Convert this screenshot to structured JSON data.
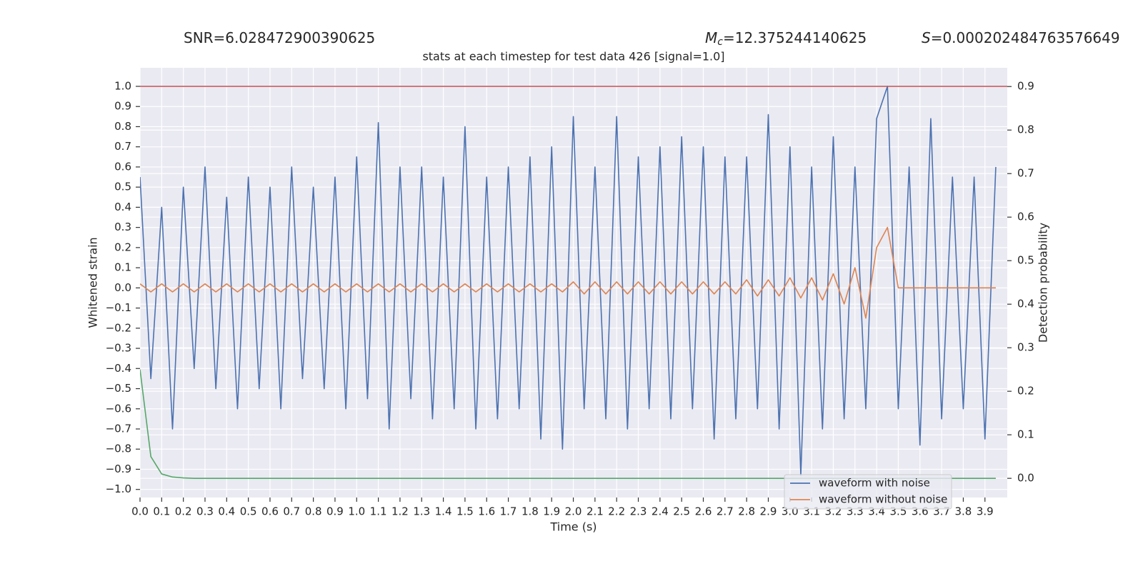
{
  "chart_data": {
    "type": "line",
    "title": "stats at each timestep for test data 426 [signal=1.0]",
    "annotations": [
      {
        "text": "SNR=6.028472900390625"
      },
      {
        "symbol": "M",
        "sub": "c",
        "text": "=12.375244140625"
      },
      {
        "symbol": "S",
        "text": "=0.000202484763576649"
      }
    ],
    "x_label": "Time (s)",
    "y_label": "Whitened strain",
    "y2_label": "Detection probability",
    "x": [
      0,
      0.05,
      0.1,
      0.15,
      0.2,
      0.25,
      0.3,
      0.35,
      0.4,
      0.45,
      0.5,
      0.55,
      0.6,
      0.65,
      0.7,
      0.75,
      0.8,
      0.85,
      0.9,
      0.95,
      1,
      1.05,
      1.1,
      1.15,
      1.2,
      1.25,
      1.3,
      1.35,
      1.4,
      1.45,
      1.5,
      1.55,
      1.6,
      1.65,
      1.7,
      1.75,
      1.8,
      1.85,
      1.9,
      1.95,
      2,
      2.05,
      2.1,
      2.15,
      2.2,
      2.25,
      2.3,
      2.35,
      2.4,
      2.45,
      2.5,
      2.55,
      2.6,
      2.65,
      2.7,
      2.75,
      2.8,
      2.85,
      2.9,
      2.95,
      3,
      3.05,
      3.1,
      3.15,
      3.2,
      3.25,
      3.3,
      3.35,
      3.4,
      3.45,
      3.5,
      3.55,
      3.6,
      3.65,
      3.7,
      3.75,
      3.8,
      3.85,
      3.9,
      3.95
    ],
    "series": [
      {
        "name": "waveform with noise",
        "color": "#4c72b0",
        "values": [
          0.55,
          -0.45,
          0.4,
          -0.7,
          0.5,
          -0.4,
          0.6,
          -0.5,
          0.45,
          -0.6,
          0.55,
          -0.5,
          0.5,
          -0.6,
          0.6,
          -0.45,
          0.5,
          -0.5,
          0.55,
          -0.6,
          0.65,
          -0.55,
          0.82,
          -0.7,
          0.6,
          -0.55,
          0.6,
          -0.65,
          0.55,
          -0.6,
          0.8,
          -0.7,
          0.55,
          -0.65,
          0.6,
          -0.6,
          0.65,
          -0.75,
          0.7,
          -0.8,
          0.85,
          -0.6,
          0.6,
          -0.65,
          0.85,
          -0.7,
          0.65,
          -0.6,
          0.7,
          -0.65,
          0.75,
          -0.6,
          0.7,
          -0.75,
          0.65,
          -0.65,
          0.65,
          -0.6,
          0.86,
          -0.7,
          0.7,
          -0.93,
          0.6,
          -0.7,
          0.75,
          -0.65,
          0.6,
          -0.6,
          0.84,
          1.0,
          -0.6,
          0.6,
          -0.78,
          0.84,
          -0.65,
          0.55,
          -0.6,
          0.55,
          -0.75,
          0.6
        ]
      },
      {
        "name": "waveform without noise",
        "color": "#dd8452",
        "values": [
          0.02,
          -0.02,
          0.02,
          -0.02,
          0.02,
          -0.02,
          0.02,
          -0.02,
          0.02,
          -0.02,
          0.02,
          -0.02,
          0.02,
          -0.02,
          0.02,
          -0.02,
          0.02,
          -0.02,
          0.02,
          -0.02,
          0.02,
          -0.02,
          0.02,
          -0.02,
          0.02,
          -0.02,
          0.02,
          -0.02,
          0.02,
          -0.02,
          0.02,
          -0.02,
          0.02,
          -0.02,
          0.02,
          -0.02,
          0.02,
          -0.02,
          0.02,
          -0.02,
          0.03,
          -0.03,
          0.03,
          -0.03,
          0.03,
          -0.03,
          0.03,
          -0.03,
          0.03,
          -0.03,
          0.03,
          -0.03,
          0.03,
          -0.03,
          0.03,
          -0.03,
          0.04,
          -0.04,
          0.04,
          -0.04,
          0.05,
          -0.05,
          0.05,
          -0.06,
          0.07,
          -0.08,
          0.1,
          -0.15,
          0.2,
          0.3,
          0,
          0,
          0,
          0,
          0,
          0,
          0,
          0,
          0,
          0
        ]
      },
      {
        "color": "#55a868",
        "axis": "y2",
        "values": [
          0.25,
          0.05,
          0.01,
          0.003,
          0.001,
          0,
          0,
          0,
          0,
          0,
          0,
          0,
          0,
          0,
          0,
          0,
          0,
          0,
          0,
          0,
          0,
          0,
          0,
          0,
          0,
          0,
          0,
          0,
          0,
          0,
          0,
          0,
          0,
          0,
          0,
          0,
          0,
          0,
          0,
          0,
          0,
          0,
          0,
          0,
          0,
          0,
          0,
          0,
          0,
          0,
          0,
          0,
          0,
          0,
          0,
          0,
          0,
          0,
          0,
          0,
          0,
          0,
          0,
          0,
          0,
          0,
          0,
          0,
          0,
          0,
          0,
          0,
          0,
          0,
          0,
          0,
          0,
          0,
          0,
          0
        ]
      }
    ],
    "hlines": [
      {
        "value": 1.0,
        "color": "#c44e52"
      }
    ],
    "xlim": [
      0,
      4.003
    ],
    "xticks": [
      {
        "value": 0,
        "label": "0.0"
      },
      0.1,
      0.2,
      0.3,
      0.4,
      0.5,
      0.6,
      0.7,
      0.8,
      0.9,
      {
        "value": 1,
        "label": "1.0"
      },
      1.1,
      1.2,
      1.3,
      1.4,
      1.5,
      1.6,
      1.7,
      1.8,
      1.9,
      {
        "value": 2,
        "label": "2.0"
      },
      2.1,
      2.2,
      2.3,
      2.4,
      2.5,
      2.6,
      2.7,
      2.8,
      2.9,
      {
        "value": 3,
        "label": "3.0"
      },
      3.1,
      3.2,
      3.3,
      3.4,
      3.5,
      3.6,
      3.7,
      3.8,
      3.9
    ],
    "ylim": [
      -1.04,
      1.092
    ],
    "yticks": [
      {
        "value": -1,
        "label": "−1.0"
      },
      {
        "value": -0.9,
        "label": "−0.9"
      },
      {
        "value": -0.8,
        "label": "−0.8"
      },
      {
        "value": -0.7,
        "label": "−0.7"
      },
      {
        "value": -0.6,
        "label": "−0.6"
      },
      {
        "value": -0.5,
        "label": "−0.5"
      },
      {
        "value": -0.4,
        "label": "−0.4"
      },
      {
        "value": -0.3,
        "label": "−0.3"
      },
      {
        "value": -0.2,
        "label": "−0.2"
      },
      {
        "value": -0.1,
        "label": "−0.1"
      },
      {
        "value": 0,
        "label": "0.0"
      },
      0.1,
      0.2,
      0.3,
      0.4,
      0.5,
      0.6,
      0.7,
      0.8,
      0.9,
      {
        "value": 1,
        "label": "1.0"
      }
    ],
    "y2lim": [
      -0.044,
      0.943
    ],
    "y2ticks": [
      {
        "value": 0,
        "label": "0.0"
      },
      0.1,
      0.2,
      0.3,
      0.4,
      0.5,
      0.6,
      0.7,
      0.8,
      0.9
    ],
    "grid": true,
    "legend": "lower right"
  }
}
